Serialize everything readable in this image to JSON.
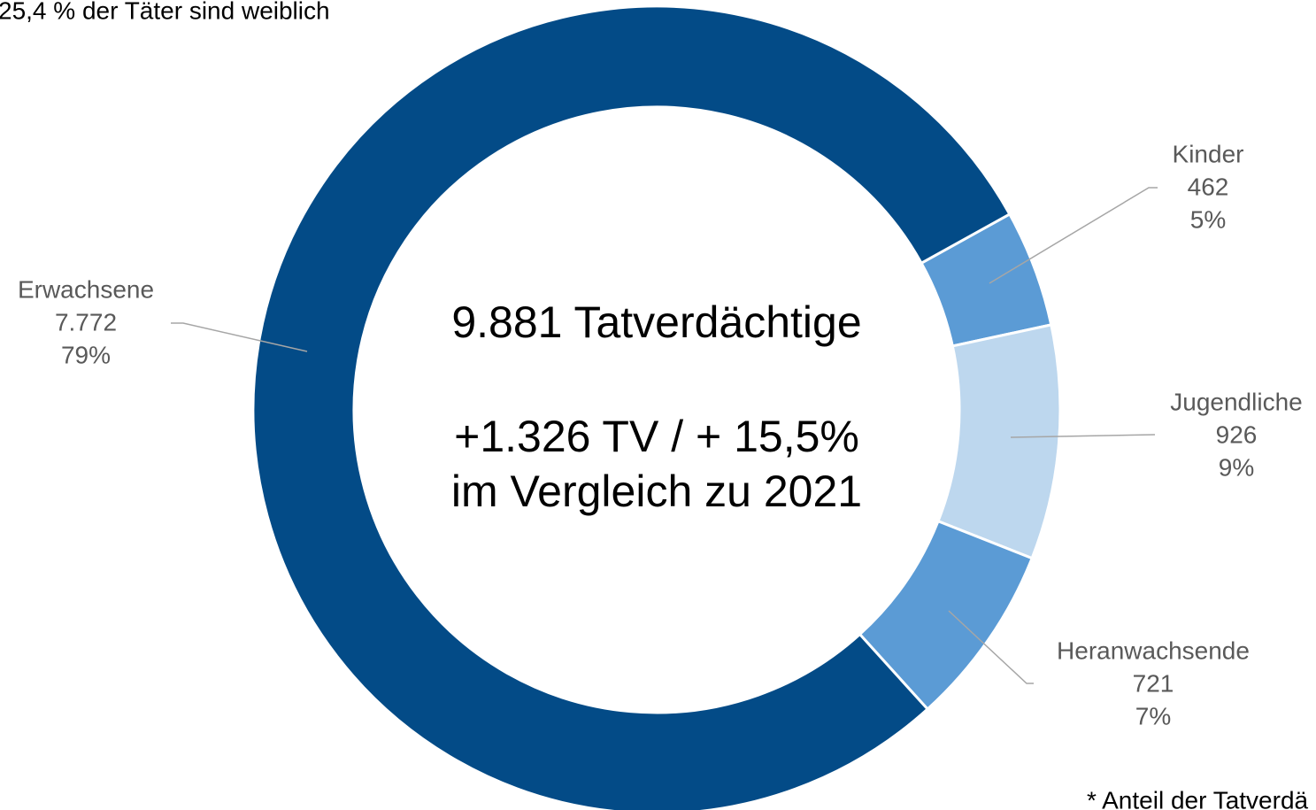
{
  "chart_data": {
    "type": "donut",
    "subtitle": "25,4 % der Täter sind weiblich",
    "center_texts": [
      "9.881 Tatverdächtige",
      "+1.326 TV / + 15,5%",
      "im Vergleich zu 2021"
    ],
    "footnote": "* Anteil der Tatverdä",
    "categories": [
      "Kinder",
      "Jugendliche",
      "Heranwachsende",
      "Erwachsene"
    ],
    "values": [
      462,
      926,
      721,
      7772
    ],
    "value_labels": [
      "462",
      "926",
      "721",
      "7.772"
    ],
    "percents": [
      5,
      9,
      7,
      79
    ],
    "percent_labels": [
      "5%",
      "9%",
      "7%",
      "79%"
    ],
    "colors": [
      "#5b9bd5",
      "#bdd7ee",
      "#5b9bd5",
      "#034b87"
    ]
  }
}
